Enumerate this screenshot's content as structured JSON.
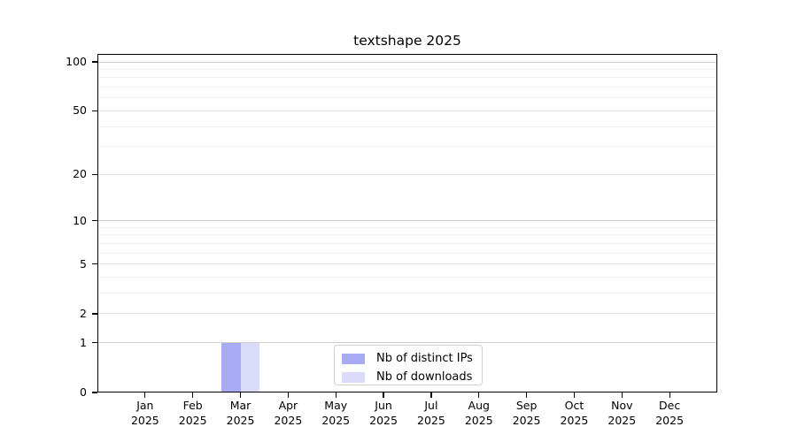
{
  "chart_data": {
    "type": "bar",
    "title": "textshape 2025",
    "categories": [
      {
        "month": "Jan",
        "year": "2025"
      },
      {
        "month": "Feb",
        "year": "2025"
      },
      {
        "month": "Mar",
        "year": "2025"
      },
      {
        "month": "Apr",
        "year": "2025"
      },
      {
        "month": "May",
        "year": "2025"
      },
      {
        "month": "Jun",
        "year": "2025"
      },
      {
        "month": "Jul",
        "year": "2025"
      },
      {
        "month": "Aug",
        "year": "2025"
      },
      {
        "month": "Sep",
        "year": "2025"
      },
      {
        "month": "Oct",
        "year": "2025"
      },
      {
        "month": "Nov",
        "year": "2025"
      },
      {
        "month": "Dec",
        "year": "2025"
      }
    ],
    "series": [
      {
        "name": "Nb of distinct IPs",
        "color": "#a9aaf4",
        "values": [
          0,
          0,
          1,
          0,
          0,
          0,
          0,
          0,
          0,
          0,
          0,
          0
        ]
      },
      {
        "name": "Nb of downloads",
        "color": "#d9dbf8",
        "values": [
          0,
          0,
          1,
          0,
          0,
          0,
          0,
          0,
          0,
          0,
          0,
          0
        ]
      }
    ],
    "y_axis": {
      "scale": "log1p",
      "ticks": [
        0,
        1,
        2,
        5,
        10,
        20,
        50,
        100
      ],
      "tick_labels": [
        "0",
        "1",
        "2",
        "5",
        "10",
        "20",
        "50",
        "100"
      ],
      "range": [
        0,
        113
      ],
      "grid": true
    },
    "legend": {
      "position": "bottom-center"
    }
  },
  "colors": {
    "background": "#ffffff",
    "axis": "#000000",
    "grid_major": "#cccccc",
    "grid_mid": "#e2e2e2",
    "grid_minor": "#f2f2f2",
    "legend_border": "#d0d0d0",
    "bar_distinct_ips": "#a9aaf4",
    "bar_downloads": "#d9dbf8"
  }
}
